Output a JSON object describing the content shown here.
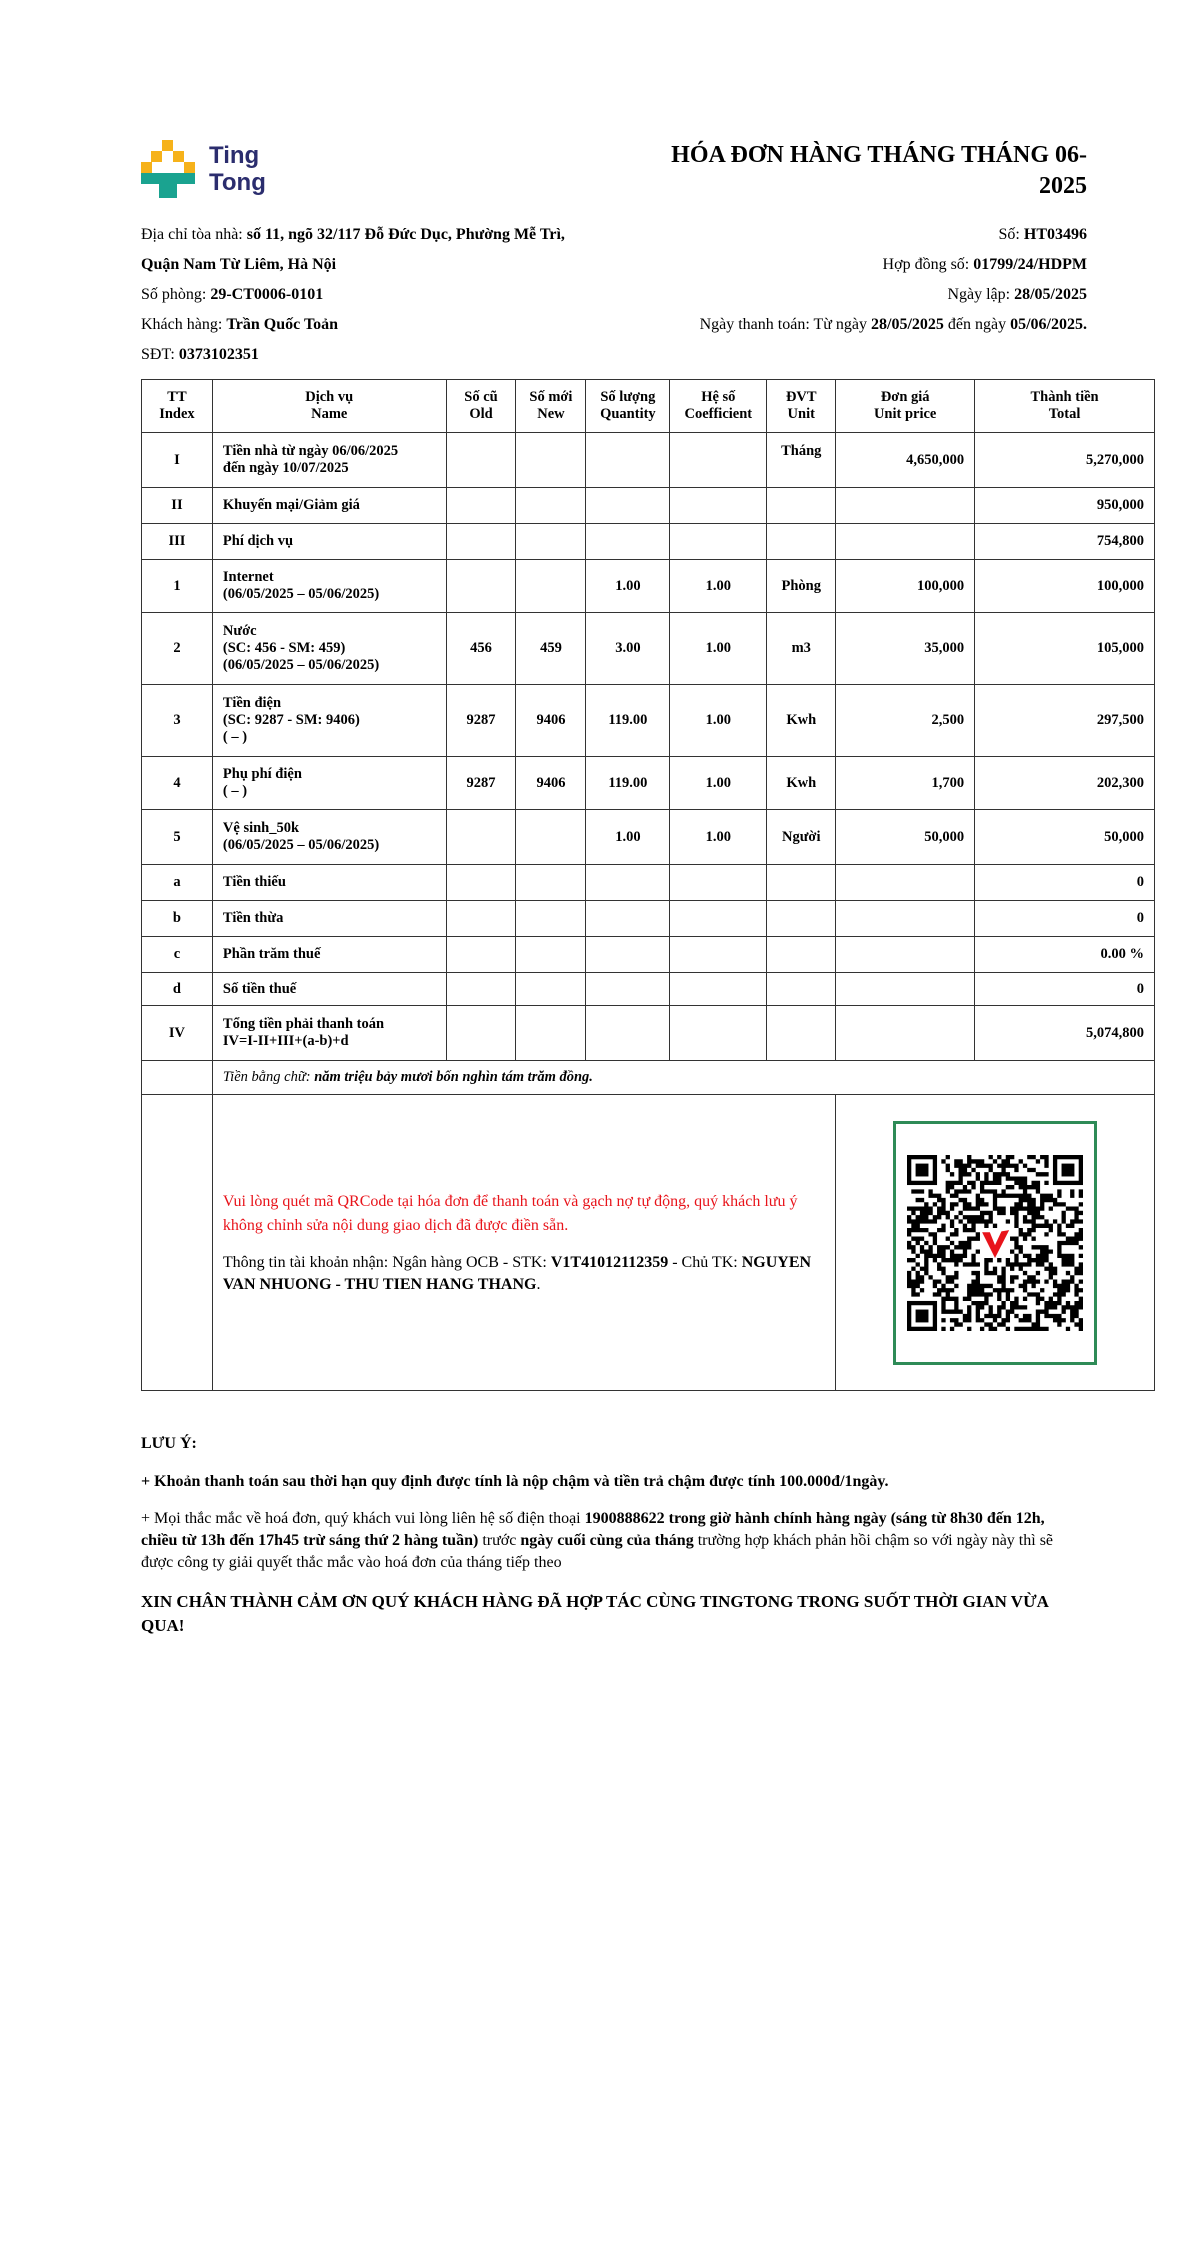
{
  "brand": {
    "logo_text_1": "Ting",
    "logo_text_2": "Tong",
    "colors": {
      "yellow": "#f6b21a",
      "teal": "#1aa390",
      "navy": "#2b2d6e"
    }
  },
  "title": "HÓA ĐƠN HÀNG THÁNG THÁNG 06-2025",
  "info_left": [
    {
      "label": "Địa chỉ tòa nhà: ",
      "value": "số 11, ngõ 32/117 Đỗ Đức Dục, Phường Mễ Trì,"
    },
    {
      "label": "",
      "value": "Quận Nam Từ Liêm, Hà Nội"
    },
    {
      "label": "Số phòng: ",
      "value": "29-CT0006-0101"
    },
    {
      "label": "Khách hàng: ",
      "value": "Trần Quốc Toản"
    },
    {
      "label": "SĐT: ",
      "value": "0373102351"
    }
  ],
  "info_right": {
    "so_label": "Số: ",
    "so": "HT03496",
    "hopdong_label": "Hợp đồng số: ",
    "hopdong": "01799/24/HDPM",
    "ngaylap_label": "Ngày lập: ",
    "ngaylap": "28/05/2025",
    "thanhtoan_label": "Ngày thanh toán: Từ ngày ",
    "thanhtoan_from": "28/05/2025",
    "thanhtoan_mid": " đến ngày ",
    "thanhtoan_to": "05/06/2025."
  },
  "table": {
    "headers": [
      [
        "TT",
        "Index"
      ],
      [
        "Dịch vụ",
        "Name"
      ],
      [
        "Số cũ",
        "Old"
      ],
      [
        "Số mới",
        "New"
      ],
      [
        "Số lượng",
        "Quantity"
      ],
      [
        "Hệ số",
        "Coefficient"
      ],
      [
        "ĐVT",
        "Unit"
      ],
      [
        "Đơn giá",
        "Unit price"
      ],
      [
        "Thành tiền",
        "Total"
      ]
    ],
    "rows": [
      {
        "idx": "I",
        "name": [
          "Tiền nhà từ ngày 06/06/2025",
          "đến ngày 10/07/2025"
        ],
        "old": "",
        "new": "",
        "qty": "",
        "coef": "",
        "unit": "Tháng",
        "price": "4,650,000",
        "total": "5,270,000",
        "unit_top": true
      },
      {
        "idx": "II",
        "name": [
          "Khuyến mại/Giảm giá"
        ],
        "old": "",
        "new": "",
        "qty": "",
        "coef": "",
        "unit": "",
        "price": "",
        "total": "950,000"
      },
      {
        "idx": "III",
        "name": [
          "Phí dịch vụ"
        ],
        "old": "",
        "new": "",
        "qty": "",
        "coef": "",
        "unit": "",
        "price": "",
        "total": "754,800"
      },
      {
        "idx": "1",
        "name": [
          "Internet",
          "(06/05/2025 – 05/06/2025)"
        ],
        "old": "",
        "new": "",
        "qty": "1.00",
        "coef": "1.00",
        "unit": "Phòng",
        "price": "100,000",
        "total": "100,000"
      },
      {
        "idx": "2",
        "name": [
          "Nước",
          "(SC: 456 - SM: 459)",
          "(06/05/2025 – 05/06/2025)"
        ],
        "old": "456",
        "new": "459",
        "qty": "3.00",
        "coef": "1.00",
        "unit": "m3",
        "price": "35,000",
        "total": "105,000"
      },
      {
        "idx": "3",
        "name": [
          "Tiền điện",
          "(SC: 9287 - SM: 9406)",
          "( – )"
        ],
        "old": "9287",
        "new": "9406",
        "qty": "119.00",
        "coef": "1.00",
        "unit": "Kwh",
        "price": "2,500",
        "total": "297,500"
      },
      {
        "idx": "4",
        "name": [
          "Phụ phí điện",
          "( – )"
        ],
        "old": "9287",
        "new": "9406",
        "qty": "119.00",
        "coef": "1.00",
        "unit": "Kwh",
        "price": "1,700",
        "total": "202,300"
      },
      {
        "idx": "5",
        "name": [
          "Vệ sinh_50k",
          "(06/05/2025 – 05/06/2025)"
        ],
        "old": "",
        "new": "",
        "qty": "1.00",
        "coef": "1.00",
        "unit": "Người",
        "price": "50,000",
        "total": "50,000"
      },
      {
        "idx": "a",
        "name": [
          "Tiền thiếu"
        ],
        "old": "",
        "new": "",
        "qty": "",
        "coef": "",
        "unit": "",
        "price": "",
        "total": "0"
      },
      {
        "idx": "b",
        "name": [
          "Tiền thừa"
        ],
        "old": "",
        "new": "",
        "qty": "",
        "coef": "",
        "unit": "",
        "price": "",
        "total": "0"
      },
      {
        "idx": "c",
        "name": [
          "Phần trăm thuế"
        ],
        "old": "",
        "new": "",
        "qty": "",
        "coef": "",
        "unit": "",
        "price": "",
        "total": "0.00 %"
      },
      {
        "idx": "d",
        "name": [
          "Số tiền thuế"
        ],
        "old": "",
        "new": "",
        "qty": "",
        "coef": "",
        "unit": "",
        "price": "",
        "total": "0"
      },
      {
        "idx": "IV",
        "name": [
          "Tổng tiền phải thanh toán",
          "IV=I-II+III+(a-b)+d"
        ],
        "old": "",
        "new": "",
        "qty": "",
        "coef": "",
        "unit": "",
        "price": "",
        "total": "5,074,800"
      }
    ],
    "words_label": "Tiền bằng chữ: ",
    "words_value": "năm triệu bảy mươi bốn nghìn tám trăm đồng."
  },
  "payment": {
    "qr_note": "Vui lòng quét mã QRCode tại hóa đơn để thanh toán và gạch nợ tự động, quý khách lưu ý không chỉnh sửa nội dung giao dịch đã được điền sẵn.",
    "acct_prefix": "Thông tin tài khoản nhận: Ngân hàng OCB - STK: ",
    "acct_no": "V1T41012112359",
    "acct_mid": " - Chủ TK: ",
    "acct_name": "NGUYEN VAN NHUONG - THU TIEN HANG THANG",
    "acct_end": ".",
    "colors": {
      "note": "#e8141b",
      "qr_border": "#2e8b57"
    }
  },
  "notes": {
    "heading": "LƯU Ý:",
    "line1": "+ Khoản thanh toán sau thời hạn quy định được tính là nộp chậm và tiền trả chậm được tính 100.000đ/1ngày.",
    "line2": [
      {
        "t": "+ Mọi thắc mắc về hoá đơn, quý khách vui lòng liên hệ số điện thoại ",
        "b": false
      },
      {
        "t": "1900888622 trong giờ hành chính hàng ngày (sáng từ 8h30 đến 12h, chiều từ 13h đến 17h45 trừ sáng thứ 2 hàng tuần)",
        "b": true
      },
      {
        "t": " trước ",
        "b": false
      },
      {
        "t": "ngày cuối cùng của tháng",
        "b": true
      },
      {
        "t": " trường hợp khách phản hồi chậm so với ngày này thì sẽ được công ty giải quyết thắc mắc vào hoá đơn của tháng tiếp theo",
        "b": false
      }
    ],
    "thanks": "XIN CHÂN THÀNH CẢM ƠN QUÝ KHÁCH HÀNG ĐÃ HỢP TÁC CÙNG TINGTONG TRONG SUỐT THỜI GIAN VỪA QUA!"
  }
}
